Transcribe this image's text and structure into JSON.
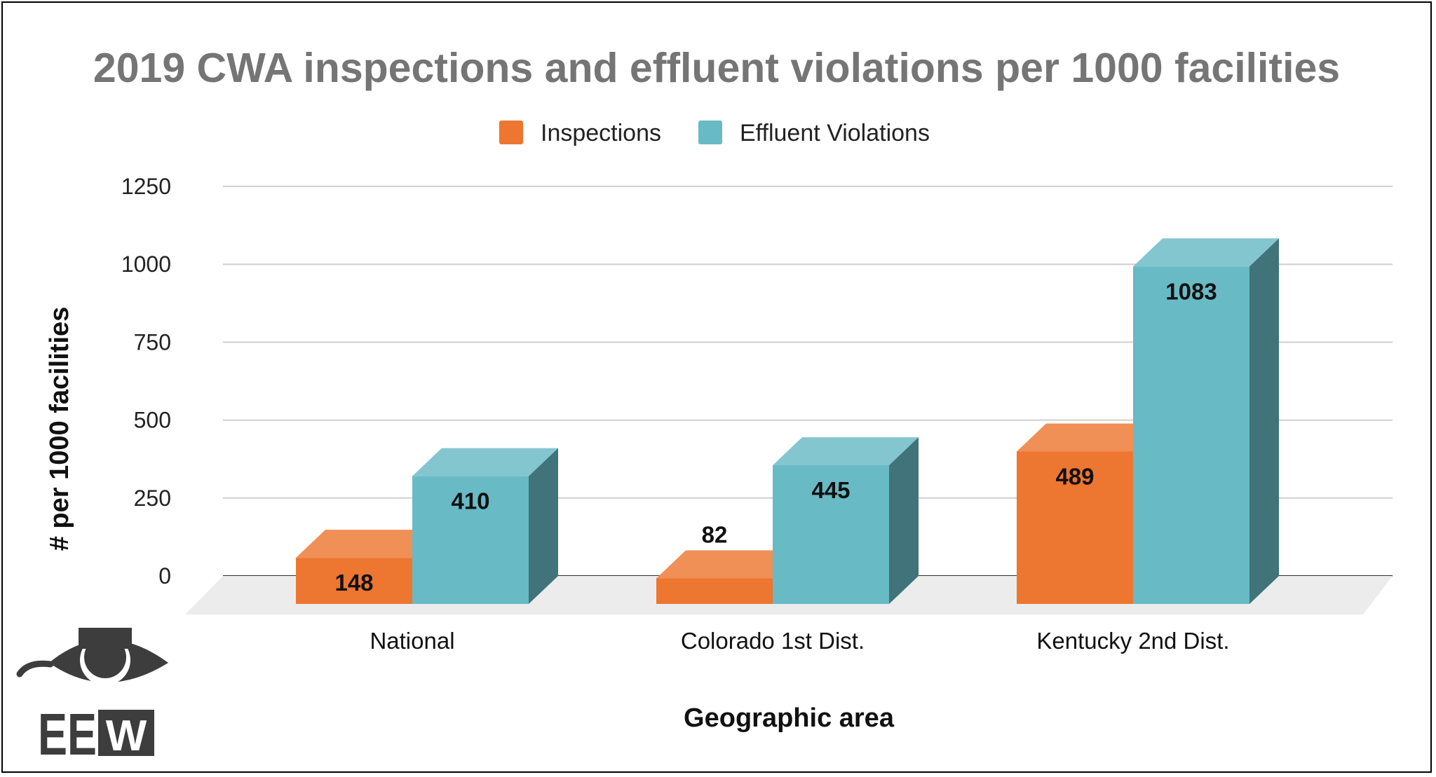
{
  "chart_data": {
    "type": "bar",
    "title": "2019 CWA inspections and effluent violations per 1000 facilities",
    "xlabel": "Geographic area",
    "ylabel": "# per 1000 facilities",
    "categories": [
      "National",
      "Colorado 1st Dist.",
      "Kentucky 2nd Dist."
    ],
    "series": [
      {
        "name": "Inspections",
        "values": [
          148,
          82,
          489
        ],
        "color": "#ed7631"
      },
      {
        "name": "Effluent Violations",
        "values": [
          410,
          445,
          1083
        ],
        "color": "#68bac5"
      }
    ],
    "ylim": [
      0,
      1250
    ],
    "yticks": [
      0,
      250,
      500,
      750,
      1000,
      1250
    ],
    "grid": true,
    "legend": "top-center",
    "style": "3d"
  },
  "logo": {
    "text_left": "EE",
    "text_right": "W",
    "icon": "eye-icon"
  }
}
